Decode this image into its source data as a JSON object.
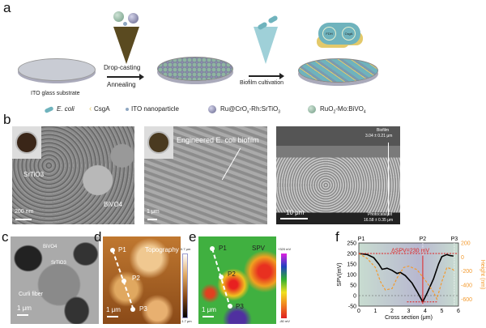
{
  "panels": {
    "a": {
      "label": "a",
      "substrate": "ITO glass substrate",
      "step1_top": "Drop-casting",
      "step1_bottom": "Annealing",
      "step2": "Biofilm cultivation",
      "cell_plasmid1": "FDH",
      "cell_plasmid2": "CsgA",
      "legend": [
        {
          "icon": "ecoli-icon",
          "label": "E. coli",
          "color": "#6fb3bd"
        },
        {
          "icon": "csga-icon",
          "label": "CsgA",
          "color": "#e3c96a"
        },
        {
          "icon": "ito-nanoparticle-icon",
          "label": "ITO nanoparticle",
          "color": "#8fa7c2"
        },
        {
          "icon": "srtio3-particle-icon",
          "label": "Ru@CrOx-Rh:SrTiO3",
          "color": "#7a7a9e"
        },
        {
          "icon": "bivo4-particle-icon",
          "label": "RuO2-Mo:BiVO4",
          "color": "#8fb5a0"
        }
      ]
    },
    "b": {
      "label": "b",
      "img1": {
        "srtio": "SrTiO3",
        "bivo": "BiVO4",
        "scale": "200 nm"
      },
      "img2": {
        "annotation": "Engineered E. coli biofilm",
        "scale": "1 μm"
      },
      "img3": {
        "biofilm": "Biofilm",
        "biofilm_thickness": "3.04 ± 0.21 μm",
        "photocatalyst": "Photocatalyst",
        "photocatalyst_thickness": "16.58 ± 0.35 μm",
        "scale": "10 μm"
      }
    },
    "c": {
      "label": "c",
      "bivo": "BiVO4",
      "srtio": "SrTiO3",
      "fiber": "Curli fiber",
      "scale": "1 μm"
    },
    "d": {
      "label": "d",
      "title": "Topography",
      "p1": "P1",
      "p2": "P2",
      "p3": "P3",
      "scale": "1 μm",
      "cbar_max": "0.7 μm",
      "cbar_min": "-1.7 μm"
    },
    "e": {
      "label": "e",
      "title": "SPV",
      "p1": "P1",
      "p2": "P2",
      "p3": "P3",
      "scale": "1 μm",
      "cbar_max": "+320 mV",
      "cbar_min": "-80 mV"
    },
    "f": {
      "label": "f",
      "p1": "P1",
      "p2": "P2",
      "p3": "P3",
      "annotation": "ΔSPV=230 mV"
    }
  },
  "chart_data": {
    "type": "line",
    "xlabel": "Cross section (μm)",
    "ylabel": "SPV(mV)",
    "y2label": "Height (nm)",
    "xlim": [
      0,
      6
    ],
    "ylim": [
      -50,
      250
    ],
    "y2lim": [
      -700,
      200
    ],
    "xticks": [
      "0",
      "1",
      "2",
      "3",
      "4",
      "5",
      "6"
    ],
    "yticks": [
      "-50",
      "0",
      "50",
      "100",
      "150",
      "200",
      "250"
    ],
    "y2ticks": [
      "-600",
      "-400",
      "-200",
      "0",
      "200"
    ],
    "series": [
      {
        "axis": "left",
        "color": "#000000",
        "style": "solid",
        "x": [
          0,
          0.5,
          0.9,
          1.2,
          1.4,
          1.7,
          2.0,
          2.3,
          2.5,
          2.8,
          3.2,
          3.5,
          3.85,
          4.1,
          4.5,
          4.8,
          5.0,
          5.3,
          5.5,
          5.7
        ],
        "y": [
          200,
          195,
          180,
          150,
          125,
          130,
          120,
          105,
          110,
          95,
          60,
          20,
          -30,
          10,
          80,
          150,
          185,
          195,
          190,
          188
        ]
      },
      {
        "axis": "right",
        "color": "#f39a2e",
        "style": "dashed",
        "x": [
          0,
          0.5,
          1.0,
          1.3,
          1.6,
          2.0,
          2.3,
          2.7,
          3.0,
          3.5,
          4.0,
          4.5,
          4.7,
          5.0,
          5.3,
          5.6,
          5.8
        ],
        "y": [
          50,
          -20,
          -150,
          -350,
          -470,
          -450,
          -300,
          -150,
          -130,
          -180,
          -330,
          -500,
          -600,
          -350,
          -150,
          -170,
          -200
        ]
      }
    ]
  }
}
